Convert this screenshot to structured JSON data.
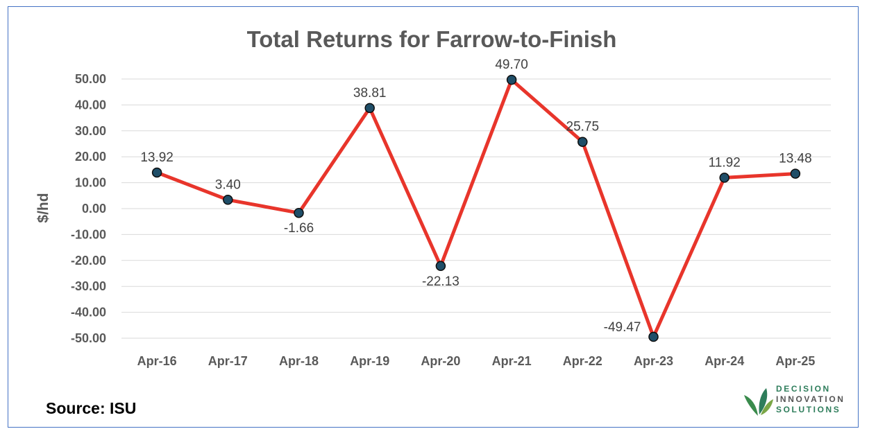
{
  "chart_data": {
    "type": "line",
    "title": "Total Returns for Farrow-to-Finish",
    "xlabel": "",
    "ylabel": "$/hd",
    "ylim": [
      -50,
      50
    ],
    "yticks": [
      "50.00",
      "40.00",
      "30.00",
      "20.00",
      "10.00",
      "0.00",
      "-10.00",
      "-20.00",
      "-30.00",
      "-40.00",
      "-50.00"
    ],
    "grid": true,
    "categories": [
      "Apr-16",
      "Apr-17",
      "Apr-18",
      "Apr-19",
      "Apr-20",
      "Apr-21",
      "Apr-22",
      "Apr-23",
      "Apr-24",
      "Apr-25"
    ],
    "series": [
      {
        "values": [
          13.92,
          3.4,
          -1.66,
          38.81,
          -22.13,
          49.7,
          25.75,
          -49.47,
          11.92,
          13.48
        ]
      }
    ],
    "data_labels": [
      "13.92",
      "3.40",
      "-1.66",
      "38.81",
      "-22.13",
      "49.70",
      "25.75",
      "-49.47",
      "11.92",
      "13.48"
    ],
    "line_color": "#e8352b",
    "marker_color": "#1f4e68"
  },
  "source": "Source: ISU",
  "logo": {
    "line1": "DECISION",
    "line2": "INNOVATION",
    "line3": "SOLUTIONS"
  }
}
